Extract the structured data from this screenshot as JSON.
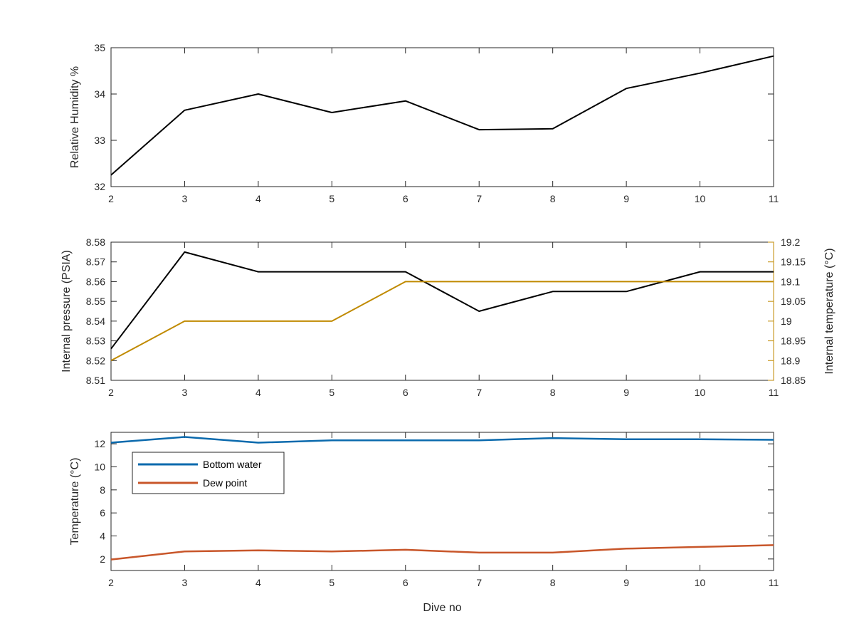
{
  "chart_data": [
    {
      "type": "line",
      "title": "",
      "xlabel": "",
      "ylabel": "Relative Humidity %",
      "x": [
        2,
        3,
        4,
        5,
        6,
        7,
        8,
        9,
        10,
        11
      ],
      "xlim": [
        2,
        11
      ],
      "ylim": [
        32,
        35
      ],
      "xticks": [
        "2",
        "3",
        "4",
        "5",
        "6",
        "7",
        "8",
        "9",
        "10",
        "11"
      ],
      "yticks": [
        "32",
        "33",
        "34",
        "35"
      ],
      "series": [
        {
          "values": [
            32.25,
            33.65,
            34.0,
            33.6,
            33.85,
            33.23,
            33.25,
            34.12,
            34.45,
            34.82
          ],
          "color": "#000000"
        }
      ],
      "grid": false
    },
    {
      "type": "line",
      "title": "",
      "xlabel": "",
      "ylabel": "Internal pressure (PSIA)",
      "ylabel_right": "Internal temperature (°C)",
      "x": [
        2,
        3,
        4,
        5,
        6,
        7,
        8,
        9,
        10,
        11
      ],
      "xlim": [
        2,
        11
      ],
      "ylim": [
        8.51,
        8.58
      ],
      "ylim_right": [
        18.85,
        19.2
      ],
      "xticks": [
        "2",
        "3",
        "4",
        "5",
        "6",
        "7",
        "8",
        "9",
        "10",
        "11"
      ],
      "yticks": [
        "8.51",
        "8.52",
        "8.53",
        "8.54",
        "8.55",
        "8.56",
        "8.57",
        "8.58"
      ],
      "yticks_right": [
        "18.85",
        "18.9",
        "18.95",
        "19",
        "19.05",
        "19.1",
        "19.15",
        "19.2"
      ],
      "series": [
        {
          "values": [
            8.526,
            8.575,
            8.565,
            8.565,
            8.565,
            8.545,
            8.555,
            8.555,
            8.565,
            8.565
          ],
          "axis": "left",
          "color": "#000000"
        },
        {
          "values": [
            18.9,
            19.0,
            19.0,
            19.0,
            19.1,
            19.1,
            19.1,
            19.1,
            19.1,
            19.1
          ],
          "axis": "right",
          "color": "#c08a00"
        }
      ],
      "grid": false
    },
    {
      "type": "line",
      "title": "",
      "xlabel": "Dive no",
      "ylabel": "Temperature (°C)",
      "x": [
        2,
        3,
        4,
        5,
        6,
        7,
        8,
        9,
        10,
        11
      ],
      "xlim": [
        2,
        11
      ],
      "ylim": [
        1,
        13
      ],
      "xticks": [
        "2",
        "3",
        "4",
        "5",
        "6",
        "7",
        "8",
        "9",
        "10",
        "11"
      ],
      "yticks": [
        "2",
        "4",
        "6",
        "8",
        "10",
        "12"
      ],
      "series": [
        {
          "name": "Bottom water",
          "values": [
            12.1,
            12.6,
            12.1,
            12.3,
            12.3,
            12.3,
            12.5,
            12.4,
            12.4,
            12.35
          ],
          "color": "#0b6aad"
        },
        {
          "name": "Dew point",
          "values": [
            1.95,
            2.65,
            2.75,
            2.65,
            2.8,
            2.55,
            2.55,
            2.9,
            3.05,
            3.2
          ],
          "color": "#c8562a"
        }
      ],
      "legend": "top-left",
      "grid": false
    }
  ]
}
